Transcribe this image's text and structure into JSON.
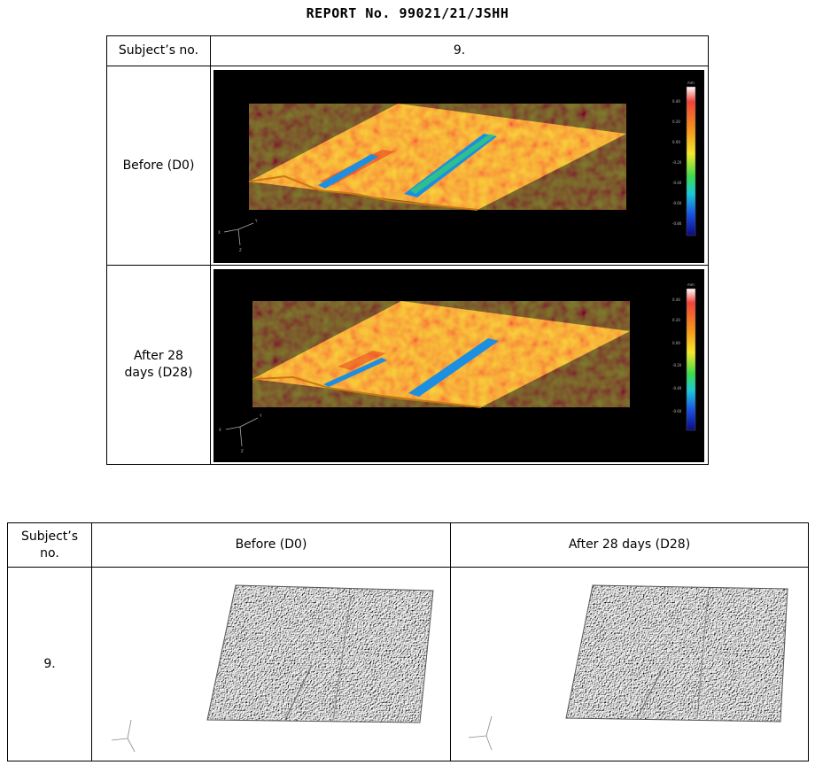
{
  "report": {
    "title": "REPORT No. 99021/21/JSHH"
  },
  "table1": {
    "header_subject": "Subject’s no.",
    "subject_value": "9.",
    "row_before": "Before (D0)",
    "row_after_line1": "After 28",
    "row_after_line2": "days (D28)",
    "legend_before": {
      "unit": "mm",
      "ticks": [
        "0.40",
        "0.20",
        "0.00",
        "-0.20",
        "-0.40",
        "-0.60",
        "-0.80"
      ]
    },
    "legend_after": {
      "unit": "mm",
      "ticks": [
        "0.40",
        "0.20",
        "0.00",
        "-0.20",
        "-0.40",
        "-0.60"
      ]
    },
    "axis_labels": {
      "x": "X",
      "y": "Y",
      "z": "Z"
    }
  },
  "table2": {
    "header_subject_line1": "Subject’s",
    "header_subject_line2": "no.",
    "header_before": "Before (D0)",
    "header_after": "After 28 days (D28)",
    "subject_value": "9."
  },
  "colors": {
    "surface_high": "#e8321e",
    "surface_mid": "#f7a21b",
    "surface_low": "#f5d32a",
    "groove": "#1c8fe0",
    "background_3d": "#000000",
    "relief_gray": "#b8b8b8"
  }
}
